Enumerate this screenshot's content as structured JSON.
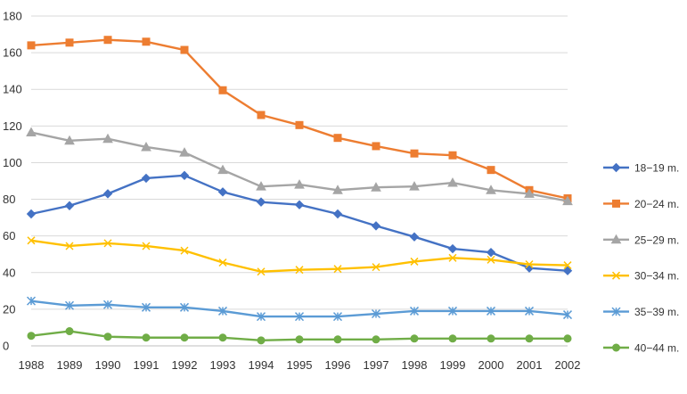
{
  "chart_data": {
    "type": "line",
    "title": "",
    "xlabel": "",
    "ylabel": "",
    "categories": [
      "1988",
      "1989",
      "1990",
      "1991",
      "1992",
      "1993",
      "1994",
      "1995",
      "1996",
      "1997",
      "1998",
      "1999",
      "2000",
      "2001",
      "2002"
    ],
    "y_ticks": [
      0,
      20,
      40,
      60,
      80,
      100,
      120,
      140,
      160,
      180
    ],
    "ylim": [
      0,
      180
    ],
    "grid": true,
    "legend_position": "right",
    "series": [
      {
        "name": "18−19 m.",
        "color": "#4472C4",
        "marker": "diamond",
        "values": [
          72,
          76.5,
          83,
          91.5,
          93,
          84,
          78.5,
          77,
          72,
          65.5,
          59.5,
          53,
          51,
          42.5,
          41
        ]
      },
      {
        "name": "20−24 m.",
        "color": "#ED7D31",
        "marker": "square",
        "values": [
          164,
          165.5,
          167,
          166,
          161.5,
          139.5,
          126,
          120.5,
          113.5,
          109,
          105,
          104,
          96,
          85,
          80.5
        ]
      },
      {
        "name": "25−29 m.",
        "color": "#A5A5A5",
        "marker": "triangle",
        "values": [
          116.5,
          112,
          113,
          108.5,
          105.5,
          96,
          87,
          88,
          85,
          86.5,
          87,
          89,
          85,
          83,
          79
        ]
      },
      {
        "name": "30−34 m.",
        "color": "#FFC000",
        "marker": "x",
        "values": [
          57.5,
          54.5,
          56,
          54.5,
          52,
          45.5,
          40.5,
          41.5,
          42,
          43,
          46,
          48,
          47,
          44.5,
          44
        ]
      },
      {
        "name": "35−39 m.",
        "color": "#5B9BD5",
        "marker": "star",
        "values": [
          24.5,
          22,
          22.5,
          21,
          21,
          19,
          16,
          16,
          16,
          17.5,
          19,
          19,
          19,
          19,
          17
        ]
      },
      {
        "name": "40−44 m.",
        "color": "#70AD47",
        "marker": "circle",
        "values": [
          5.5,
          8,
          5,
          4.5,
          4.5,
          4.5,
          3,
          3.5,
          3.5,
          3.5,
          4,
          4,
          4,
          4,
          4
        ]
      }
    ]
  }
}
